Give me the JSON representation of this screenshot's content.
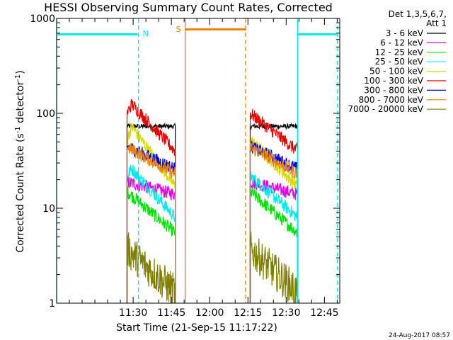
{
  "chart_data": {
    "type": "line",
    "title": "HESSI Observing Summary Count Rates, Corrected",
    "xlabel": "Start Time (21-Sep-15 11:17:22)",
    "ylabel_main": "Corrected Count Rate (s",
    "ylabel_sup1": "-1",
    "ylabel_mid": " detector",
    "ylabel_sup2": "-1",
    "ylabel_end": ")",
    "yscale": "log",
    "ylim": [
      1,
      1000
    ],
    "xlim_minutes": [
      11.0,
      12.85
    ],
    "x_ticks": [
      {
        "label": "11:30",
        "t": 11.5
      },
      {
        "label": "11:45",
        "t": 11.75
      },
      {
        "label": "12:00",
        "t": 12.0
      },
      {
        "label": "12:15",
        "t": 12.25
      },
      {
        "label": "12:30",
        "t": 12.5
      },
      {
        "label": "12:45",
        "t": 12.75
      }
    ],
    "y_ticks": [
      {
        "label": "1",
        "v": 1
      },
      {
        "label": "10",
        "v": 10
      },
      {
        "label": "100",
        "v": 100
      },
      {
        "label": "1000",
        "v": 1000
      }
    ],
    "legend_header": [
      "Det 1,3,5,6,7,",
      "Att 1"
    ],
    "legend_position": "right",
    "series": [
      {
        "name": "3 - 6 keV",
        "color": "#000000"
      },
      {
        "name": "6 - 12 keV",
        "color": "#e000e0"
      },
      {
        "name": "12 - 25 keV",
        "color": "#00e000"
      },
      {
        "name": "25 - 50 keV",
        "color": "#00e8e8"
      },
      {
        "name": "50 - 100 keV",
        "color": "#d8d800"
      },
      {
        "name": "100 - 300 keV",
        "color": "#e00000"
      },
      {
        "name": "300 - 800 keV",
        "color": "#0000e0"
      },
      {
        "name": "800 - 7000 keV",
        "color": "#f08000"
      },
      {
        "name": "7000 - 20000 keV",
        "color": "#808000"
      }
    ],
    "intervals": [
      {
        "t_start": 11.46,
        "t_end": 11.775
      },
      {
        "t_start": 12.265,
        "t_end": 12.575
      }
    ],
    "series_levels": [
      {
        "start": 73,
        "end": 73,
        "peak": 0
      },
      {
        "start": 19,
        "end": 14,
        "peak": 0
      },
      {
        "start": 15,
        "end": 5.5,
        "peak": 0
      },
      {
        "start": 22,
        "end": 8,
        "peak": 26
      },
      {
        "start": 52,
        "end": 17,
        "peak": 72
      },
      {
        "start": 100,
        "end": 40,
        "peak": 125
      },
      {
        "start": 45,
        "end": 26,
        "peak": 0
      },
      {
        "start": 44,
        "end": 23,
        "peak": 0
      },
      {
        "start": 3.7,
        "end": 1.3,
        "peak": 0
      }
    ],
    "annotations": [
      {
        "text": "N",
        "color": "#00e8e8"
      },
      {
        "text": "S",
        "color": "#f08000"
      }
    ],
    "overlay_lines": {
      "cyan": "#00e8e8",
      "orange": "#f08000",
      "cyan_solid_t": [
        11.0,
        12.575
      ],
      "cyan_dashed_t": [
        11.535,
        12.835
      ],
      "orange_solid_t": 11.84,
      "orange_dashed_t": 12.235,
      "cyan_bar_1": [
        11.005,
        11.53
      ],
      "cyan_bar_2": [
        12.575,
        12.83
      ],
      "orange_bar": [
        11.84,
        12.235
      ],
      "bar_level": 680
    },
    "footer_date": "24-Aug-2017 08:57"
  }
}
